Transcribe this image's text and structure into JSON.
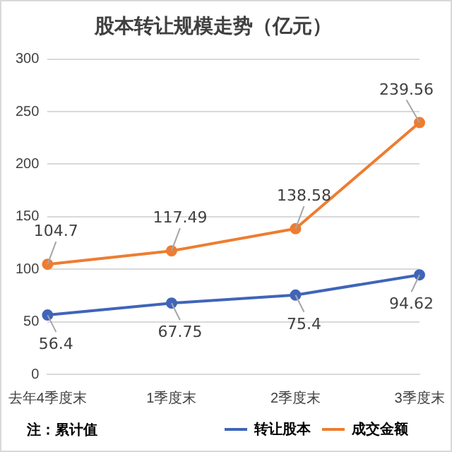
{
  "chart_data": {
    "type": "line",
    "title": "股本转让规模走势（亿元）",
    "categories": [
      "去年4季度末",
      "1季度末",
      "2季度末",
      "3季度末"
    ],
    "series": [
      {
        "name": "转让股本",
        "color": "#4065b8",
        "values": [
          56.4,
          67.75,
          75.4,
          94.62
        ]
      },
      {
        "name": "成交金额",
        "color": "#ed7d31",
        "values": [
          104.7,
          117.49,
          138.58,
          239.56
        ]
      }
    ],
    "ylim": [
      0,
      300
    ],
    "yticks": [
      0,
      50,
      100,
      150,
      200,
      250,
      300
    ],
    "grid": "y",
    "legend": "bottom",
    "marker": "circle",
    "data_labels": true,
    "annotations": [
      "注：累计值"
    ]
  }
}
